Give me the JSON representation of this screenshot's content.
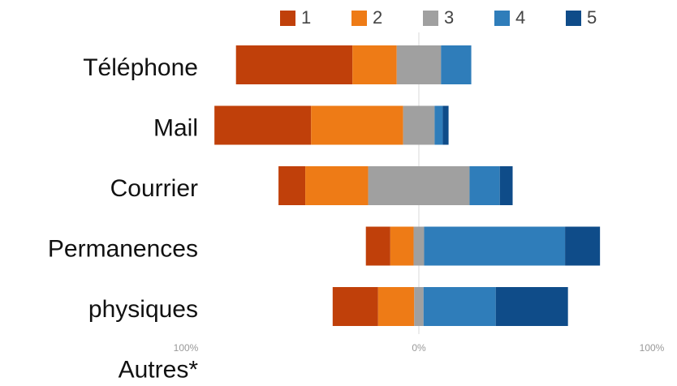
{
  "chart_data": {
    "type": "diverging_bar",
    "categories": [
      "Téléphone",
      "Mail",
      "Courrier",
      "Permanences",
      "physiques",
      "Autres*"
    ],
    "series": [
      {
        "name": "1",
        "color": "#c0400a",
        "values": [
          50,
          41.5,
          11.5,
          10.5,
          19.5,
          null
        ]
      },
      {
        "name": "2",
        "color": "#ee7b16",
        "values": [
          19,
          39.5,
          27,
          10,
          15.5,
          null
        ]
      },
      {
        "name": "3",
        "color": "#a0a0a0",
        "values": [
          19,
          13.5,
          43.5,
          4.5,
          4,
          null
        ]
      },
      {
        "name": "4",
        "color": "#2f7dba",
        "values": [
          13,
          3.5,
          13,
          60.5,
          31,
          null
        ]
      },
      {
        "name": "5",
        "color": "#0f4c89",
        "values": [
          0,
          2.5,
          5.5,
          15,
          31,
          null
        ]
      }
    ],
    "xlim": [
      -100,
      100
    ],
    "xticks": [
      {
        "value": -100,
        "label": "100%"
      },
      {
        "value": 0,
        "label": "0%"
      },
      {
        "value": 100,
        "label": "100%"
      }
    ]
  }
}
